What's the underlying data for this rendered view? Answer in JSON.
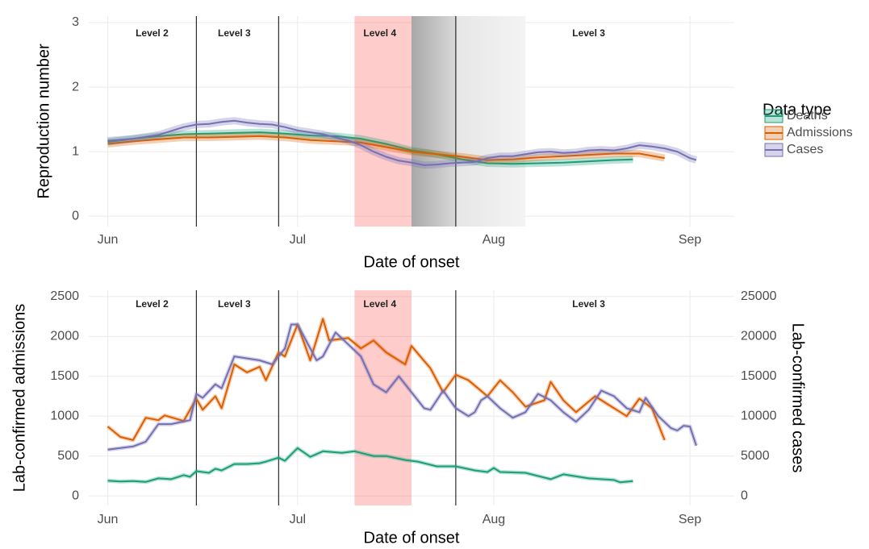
{
  "chart_data": [
    {
      "type": "line",
      "x_label": "Date of onset",
      "y_label": "Reproduction number",
      "xlim": [
        -3,
        99
      ],
      "xticks": [
        {
          "value": 0,
          "label": "Jun"
        },
        {
          "value": 30,
          "label": "Jul"
        },
        {
          "value": 61,
          "label": "Aug"
        },
        {
          "value": 92,
          "label": "Sep"
        }
      ],
      "ylim": [
        -0.16,
        3.1
      ],
      "yticks": [
        0,
        1,
        2,
        3
      ],
      "grid": true,
      "legend": {
        "title": "Data type",
        "position": "right"
      },
      "annotations": [
        {
          "text": "Level 2",
          "x": 7
        },
        {
          "text": "Level 3",
          "x": 20
        },
        {
          "text": "Level 4",
          "x": 43
        },
        {
          "text": "Level 3",
          "x": 76
        }
      ],
      "level_changes": [
        14,
        27,
        55
      ],
      "red_region": [
        39,
        48
      ],
      "gray_region": [
        48,
        55,
        66
      ],
      "series": [
        {
          "name": "Deaths",
          "color": "#1b9e77",
          "x": [
            0,
            4,
            8,
            12,
            16,
            20,
            24,
            28,
            32,
            36,
            40,
            44,
            48,
            52,
            56,
            60,
            64,
            68,
            72,
            76,
            80,
            83
          ],
          "values": [
            1.15,
            1.2,
            1.24,
            1.27,
            1.28,
            1.29,
            1.3,
            1.28,
            1.25,
            1.24,
            1.2,
            1.12,
            1.02,
            0.96,
            0.88,
            0.82,
            0.81,
            0.82,
            0.83,
            0.85,
            0.87,
            0.88
          ]
        },
        {
          "name": "Admissions",
          "color": "#d95f02",
          "x": [
            0,
            4,
            8,
            12,
            16,
            20,
            24,
            28,
            32,
            36,
            40,
            44,
            48,
            52,
            56,
            60,
            64,
            68,
            72,
            76,
            80,
            84,
            88
          ],
          "values": [
            1.12,
            1.16,
            1.19,
            1.22,
            1.22,
            1.23,
            1.24,
            1.22,
            1.18,
            1.16,
            1.14,
            1.07,
            1.0,
            0.96,
            0.92,
            0.87,
            0.88,
            0.91,
            0.93,
            0.95,
            0.97,
            0.97,
            0.9
          ]
        },
        {
          "name": "Cases",
          "color": "#7570b3",
          "x": [
            0,
            4,
            8,
            12,
            14,
            16,
            18,
            20,
            22,
            24,
            26,
            28,
            30,
            32,
            34,
            36,
            38,
            40,
            42,
            44,
            46,
            48,
            50,
            52,
            54,
            56,
            58,
            60,
            62,
            64,
            66,
            68,
            70,
            72,
            74,
            76,
            78,
            80,
            82,
            84,
            86,
            88,
            90,
            92,
            93
          ],
          "values": [
            1.17,
            1.2,
            1.26,
            1.38,
            1.42,
            1.43,
            1.46,
            1.48,
            1.45,
            1.43,
            1.42,
            1.38,
            1.33,
            1.3,
            1.27,
            1.22,
            1.17,
            1.1,
            1.0,
            0.92,
            0.86,
            0.83,
            0.79,
            0.8,
            0.82,
            0.83,
            0.84,
            0.9,
            0.93,
            0.93,
            0.96,
            0.99,
            1.0,
            0.98,
            0.99,
            1.02,
            1.03,
            1.02,
            1.05,
            1.1,
            1.08,
            1.05,
            1.0,
            0.9,
            0.87
          ]
        }
      ]
    },
    {
      "type": "line",
      "x_label": "Date of onset",
      "y_label": "Lab-confirmed admissions",
      "y2_label": "Lab-confirmed cases",
      "xlim": [
        -3,
        99
      ],
      "xticks": [
        {
          "value": 0,
          "label": "Jun"
        },
        {
          "value": 30,
          "label": "Jul"
        },
        {
          "value": 61,
          "label": "Aug"
        },
        {
          "value": 92,
          "label": "Sep"
        }
      ],
      "ylim": [
        -120,
        2580
      ],
      "yticks": [
        0,
        500,
        1000,
        1500,
        2000,
        2500
      ],
      "y2lim": [
        -1200,
        25800
      ],
      "y2ticks": [
        0,
        5000,
        10000,
        15000,
        20000,
        25000
      ],
      "grid": true,
      "annotations": [
        {
          "text": "Level 2",
          "x": 7
        },
        {
          "text": "Level 3",
          "x": 20
        },
        {
          "text": "Level 4",
          "x": 43
        },
        {
          "text": "Level 3",
          "x": 76
        }
      ],
      "level_changes": [
        14,
        27,
        55
      ],
      "red_region": [
        39,
        48
      ],
      "series": [
        {
          "color": "#1b9e77",
          "x": [
            0,
            2,
            4,
            6,
            8,
            10,
            12,
            13,
            14,
            16,
            17,
            18,
            20,
            22,
            24,
            25,
            27,
            28,
            30,
            32,
            34,
            37,
            39,
            42,
            44,
            47,
            49,
            52,
            55,
            58,
            60,
            61,
            62,
            66,
            70,
            72,
            76,
            80,
            81,
            83
          ],
          "values": [
            190,
            180,
            185,
            175,
            220,
            210,
            260,
            240,
            310,
            290,
            340,
            320,
            400,
            400,
            410,
            430,
            480,
            440,
            600,
            490,
            560,
            540,
            560,
            500,
            500,
            450,
            430,
            370,
            370,
            320,
            300,
            350,
            300,
            290,
            210,
            270,
            220,
            200,
            170,
            185
          ]
        },
        {
          "color": "#d95f02",
          "x": [
            0,
            2,
            4,
            6,
            8,
            9,
            12,
            14,
            15,
            17,
            18,
            20,
            22,
            24,
            25,
            27,
            28,
            30,
            32,
            34,
            35,
            38,
            40,
            42,
            44,
            47,
            48,
            51,
            53,
            55,
            57,
            60,
            62,
            64,
            66,
            69,
            70,
            72,
            74,
            77,
            79,
            82,
            84,
            86,
            88
          ],
          "values": [
            870,
            740,
            700,
            980,
            950,
            1010,
            940,
            1220,
            1080,
            1250,
            1100,
            1650,
            1550,
            1620,
            1450,
            1800,
            1750,
            2150,
            1700,
            2220,
            1950,
            1980,
            1850,
            1950,
            1800,
            1650,
            1880,
            1600,
            1300,
            1520,
            1450,
            1250,
            1450,
            1300,
            1120,
            1200,
            1430,
            1200,
            1050,
            1250,
            1150,
            1000,
            1220,
            1100,
            700
          ]
        },
        {
          "color": "#7570b3",
          "axis": "y2",
          "x": [
            0,
            4,
            6,
            8,
            10,
            13,
            14,
            15,
            17,
            18,
            20,
            24,
            26,
            28,
            29,
            30,
            31,
            33,
            34,
            36,
            38,
            40,
            42,
            44,
            46,
            48,
            50,
            51,
            53,
            55,
            57,
            58,
            59,
            60,
            62,
            64,
            66,
            68,
            70,
            72,
            74,
            76,
            78,
            80,
            82,
            84,
            85,
            87,
            89,
            90,
            91,
            92,
            93
          ],
          "values": [
            5800,
            6200,
            6800,
            9000,
            9000,
            9500,
            12800,
            12300,
            14000,
            13500,
            17500,
            17000,
            16500,
            18500,
            21500,
            21500,
            20000,
            17000,
            17500,
            20500,
            19000,
            17500,
            14000,
            13000,
            15000,
            13000,
            11000,
            10800,
            13200,
            11000,
            10000,
            10500,
            12000,
            12500,
            11000,
            9800,
            10500,
            12800,
            12000,
            10500,
            9300,
            10800,
            13200,
            12500,
            11000,
            10500,
            12300,
            10000,
            8500,
            8200,
            8800,
            8700,
            6300
          ]
        }
      ]
    }
  ]
}
